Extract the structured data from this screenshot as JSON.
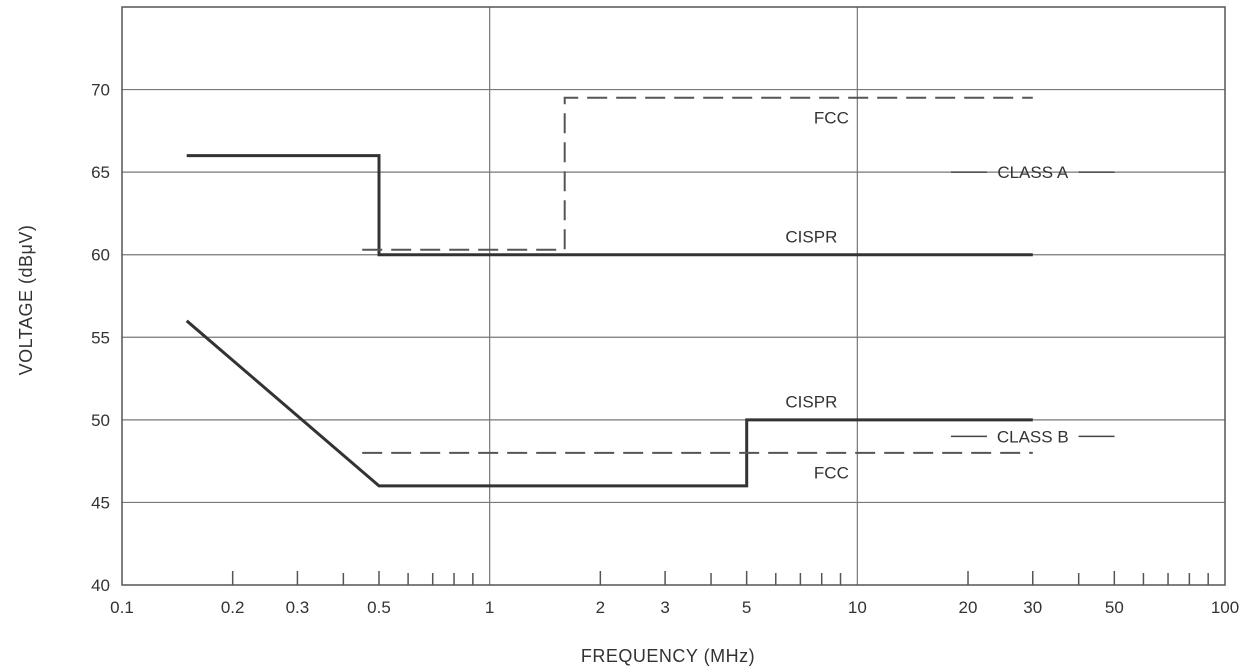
{
  "chart_data": {
    "type": "line",
    "xlabel": "FREQUENCY (MHz)",
    "ylabel": "VOLTAGE (dBμV)",
    "x_scale": "log",
    "xlim": [
      0.1,
      100
    ],
    "ylim": [
      40,
      75
    ],
    "x_ticks": [
      0.1,
      0.2,
      0.3,
      0.5,
      1,
      2,
      3,
      5,
      10,
      20,
      30,
      50,
      100
    ],
    "x_tick_labels": [
      "0.1",
      "0.2",
      "0.3",
      "0.5",
      "1",
      "2",
      "3",
      "5",
      "10",
      "20",
      "30",
      "50",
      "100"
    ],
    "y_ticks": [
      40,
      45,
      50,
      55,
      60,
      65,
      70
    ],
    "y_tick_labels": [
      "40",
      "45",
      "50",
      "55",
      "60",
      "65",
      "70"
    ],
    "grid": "major",
    "series": [
      {
        "name": "CISPR",
        "group": "CLASS A",
        "style": "solid",
        "x": [
          0.15,
          0.5,
          0.5,
          30
        ],
        "y": [
          66,
          66,
          60,
          60
        ]
      },
      {
        "name": "FCC",
        "group": "CLASS A",
        "style": "dashed",
        "x": [
          0.45,
          1.6,
          1.6,
          30
        ],
        "y": [
          60.3,
          60.3,
          69.5,
          69.5
        ]
      },
      {
        "name": "CISPR",
        "group": "CLASS B",
        "style": "solid",
        "x": [
          0.15,
          0.5,
          5,
          5,
          30
        ],
        "y": [
          56,
          46,
          46,
          50,
          50
        ]
      },
      {
        "name": "FCC",
        "group": "CLASS B",
        "style": "dashed",
        "x": [
          0.45,
          30
        ],
        "y": [
          48,
          48
        ]
      }
    ],
    "annotations": [
      {
        "text": "FCC",
        "x": 8.5,
        "y": 68.3
      },
      {
        "text": "CLASS A",
        "x": 30,
        "y": 65
      },
      {
        "text": "CISPR",
        "x": 7.5,
        "y": 61.1
      },
      {
        "text": "CISPR",
        "x": 7.5,
        "y": 51.1
      },
      {
        "text": "CLASS B",
        "x": 30,
        "y": 49
      },
      {
        "text": "FCC",
        "x": 8.5,
        "y": 46.8
      }
    ]
  }
}
